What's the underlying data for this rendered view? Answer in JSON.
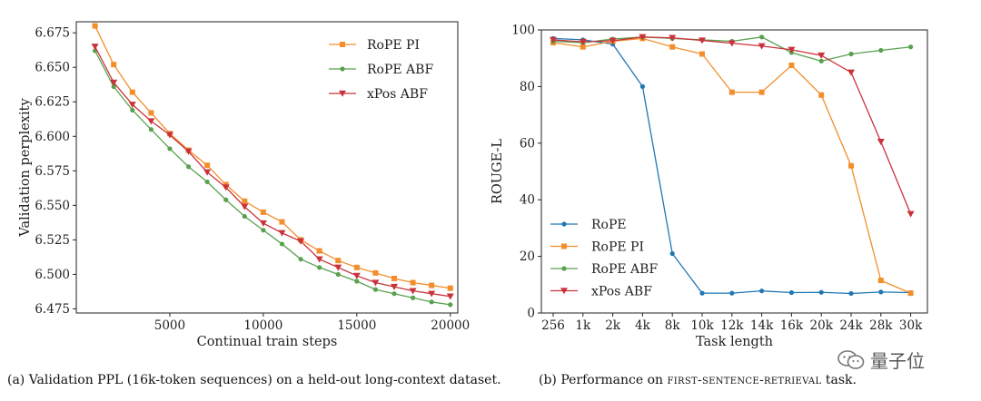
{
  "chart_data": [
    {
      "type": "line",
      "xlabel": "Continual train steps",
      "ylabel": "Validation perplexity",
      "xlim": [
        0,
        20400
      ],
      "ylim": [
        6.472,
        6.683
      ],
      "xticks": [
        5000,
        10000,
        15000,
        20000
      ],
      "yticks": [
        6.475,
        6.5,
        6.525,
        6.55,
        6.575,
        6.6,
        6.625,
        6.65,
        6.675
      ],
      "ytick_labels": [
        "6.475",
        "6.500",
        "6.525",
        "6.550",
        "6.575",
        "6.600",
        "6.625",
        "6.650",
        "6.675"
      ],
      "legend_position": "top-right",
      "grid": false,
      "x": [
        1000,
        2000,
        3000,
        4000,
        5000,
        6000,
        7000,
        8000,
        9000,
        10000,
        11000,
        12000,
        13000,
        14000,
        15000,
        16000,
        17000,
        18000,
        19000,
        20000
      ],
      "series": [
        {
          "name": "RoPE PI",
          "color": "#f28e2b",
          "marker": "square",
          "values": [
            6.68,
            6.652,
            6.632,
            6.617,
            6.602,
            6.59,
            6.579,
            6.565,
            6.553,
            6.545,
            6.538,
            6.525,
            6.517,
            6.51,
            6.505,
            6.501,
            6.497,
            6.494,
            6.492,
            6.49
          ]
        },
        {
          "name": "RoPE ABF",
          "color": "#59a14f",
          "marker": "dot",
          "values": [
            6.662,
            6.636,
            6.619,
            6.605,
            6.591,
            6.578,
            6.567,
            6.554,
            6.542,
            6.532,
            6.522,
            6.511,
            6.505,
            6.5,
            6.495,
            6.489,
            6.486,
            6.483,
            6.48,
            6.478
          ]
        },
        {
          "name": "xPos ABF",
          "color": "#c9323b",
          "marker": "triangle-down",
          "values": [
            6.665,
            6.639,
            6.623,
            6.611,
            6.601,
            6.589,
            6.574,
            6.563,
            6.549,
            6.537,
            6.53,
            6.524,
            6.511,
            6.505,
            6.499,
            6.494,
            6.491,
            6.488,
            6.486,
            6.484
          ]
        }
      ],
      "caption": "(a) Validation PPL (16k-token sequences) on a held-out long-context dataset."
    },
    {
      "type": "line",
      "xlabel": "Task length",
      "ylabel": "ROUGE-L",
      "categories": [
        "256",
        "1k",
        "2k",
        "4k",
        "8k",
        "10k",
        "12k",
        "14k",
        "16k",
        "20k",
        "24k",
        "28k",
        "30k"
      ],
      "ylim": [
        0,
        100
      ],
      "yticks": [
        0,
        20,
        40,
        60,
        80,
        100
      ],
      "legend_position": "bottom-left",
      "grid": false,
      "series": [
        {
          "name": "RoPE",
          "color": "#1f77b4",
          "marker": "dot",
          "values": [
            97,
            96.5,
            95,
            80,
            21,
            7,
            7,
            7.8,
            7.2,
            7.3,
            6.9,
            7.4,
            7.2
          ]
        },
        {
          "name": "RoPE PI",
          "color": "#f28e2b",
          "marker": "square",
          "values": [
            95.5,
            94,
            96,
            97,
            94,
            91.5,
            78,
            78,
            87.5,
            77,
            52,
            11.5,
            7
          ]
        },
        {
          "name": "RoPE ABF",
          "color": "#59a14f",
          "marker": "dot",
          "values": [
            96,
            95.5,
            96.8,
            97.5,
            97,
            96.5,
            96,
            97.5,
            92,
            89,
            91.5,
            92.8,
            94
          ]
        },
        {
          "name": "xPos ABF",
          "color": "#c9323b",
          "marker": "triangle-down",
          "values": [
            96.5,
            95.8,
            96.2,
            97.5,
            97.2,
            96.3,
            95.3,
            94.3,
            93,
            91,
            85,
            60.5,
            35
          ]
        }
      ],
      "caption_prefix": "(b) Performance on ",
      "caption_task": "first-sentence-retrieval",
      "caption_suffix": " task."
    }
  ],
  "watermark": {
    "text": "量子位"
  }
}
